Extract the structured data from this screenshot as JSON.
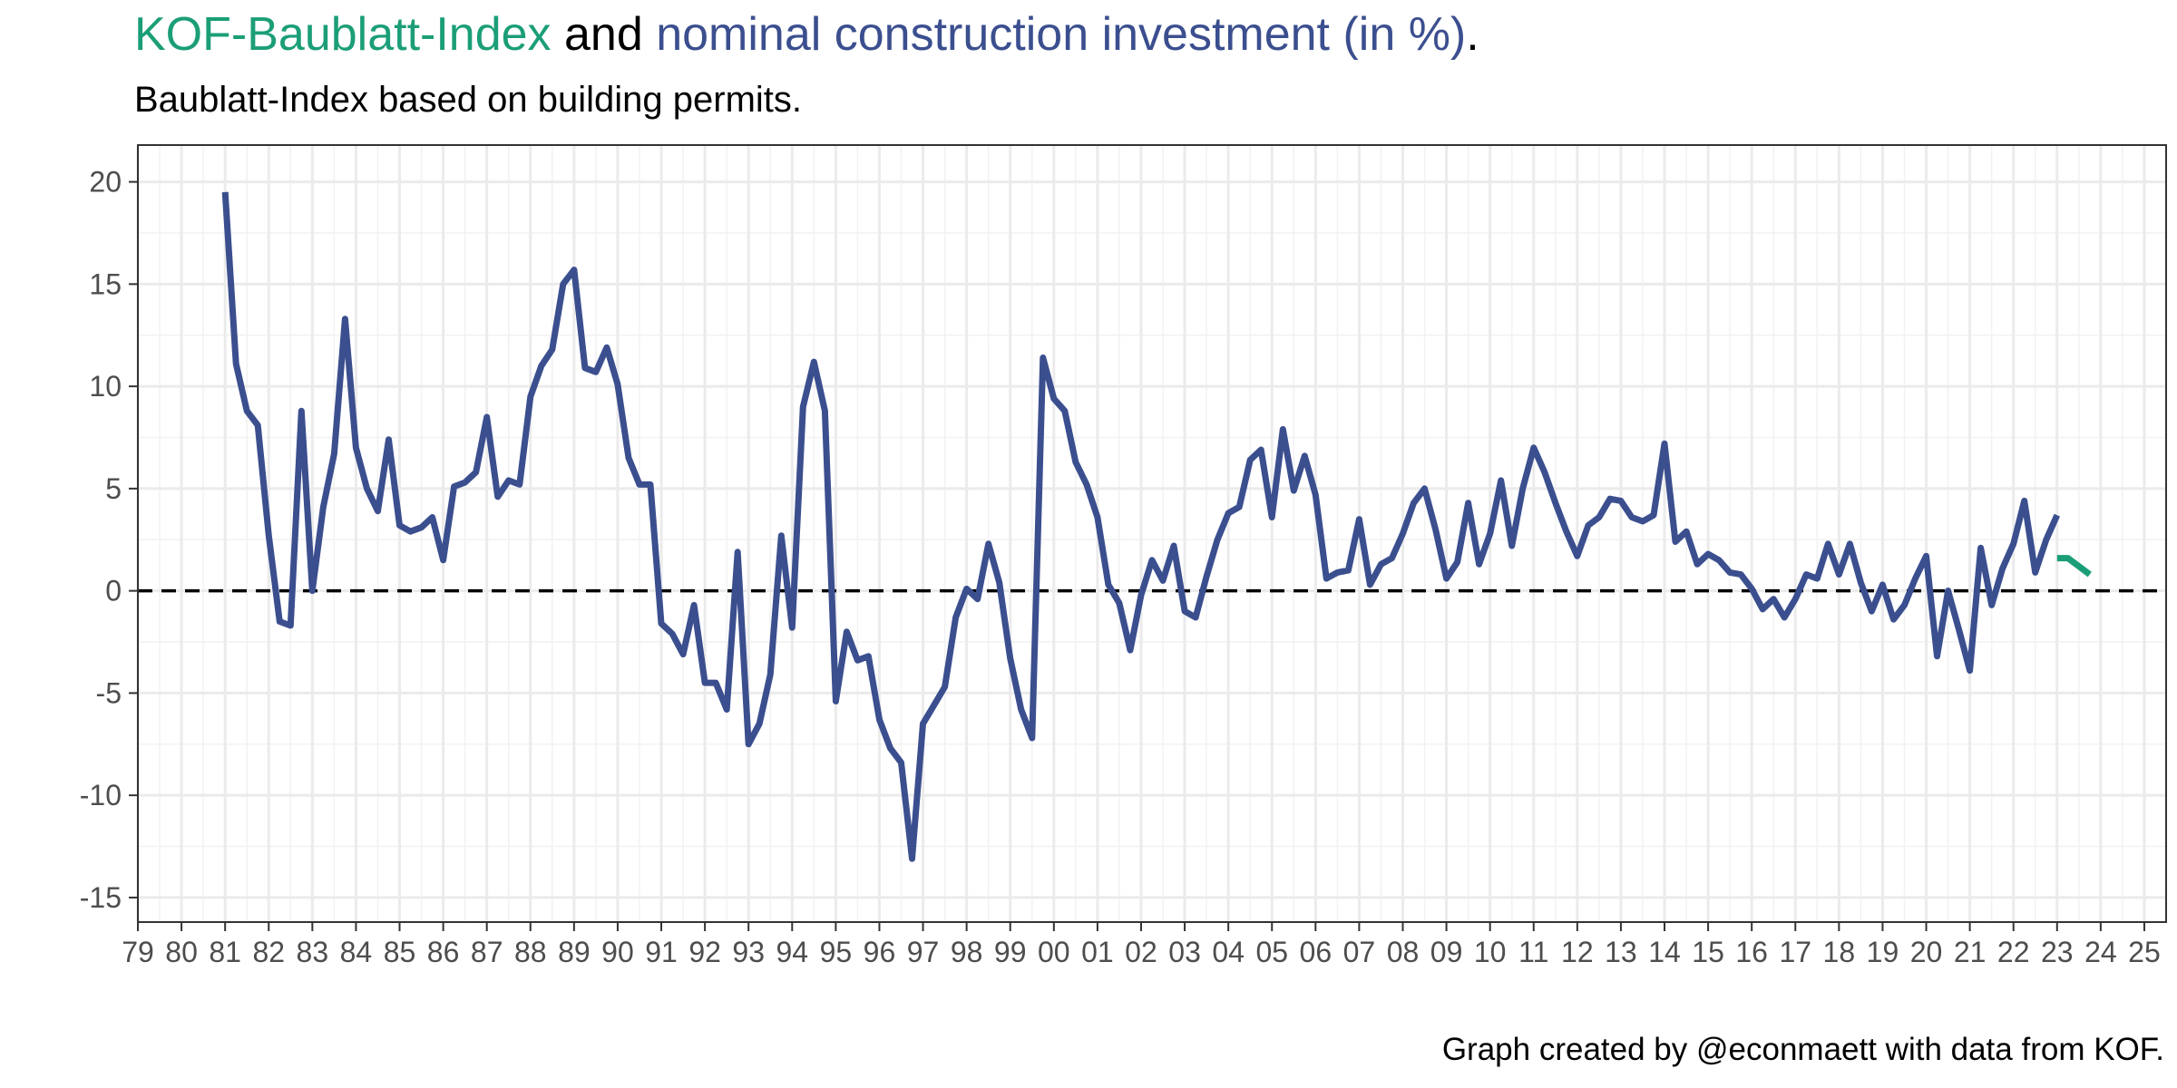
{
  "title": {
    "part1": "KOF-Baublatt-Index",
    "part2": " and ",
    "part3": "nominal construction investment (in %)",
    "part4": ".",
    "color_part1": "#1b9e77",
    "color_part3": "#3b4f8f"
  },
  "subtitle": "Baublatt-Index based on building permits.",
  "caption": "Graph created by @econmaett with data from KOF.",
  "chart_data": {
    "type": "line",
    "title": "KOF-Baublatt-Index and nominal construction investment (in %).",
    "subtitle": "Baublatt-Index based on building permits.",
    "xlabel": "",
    "ylabel": "",
    "xlim": [
      1979,
      2025.5
    ],
    "ylim": [
      -16.2,
      21.8
    ],
    "x_ticks": [
      1979,
      1980,
      1981,
      1982,
      1983,
      1984,
      1985,
      1986,
      1987,
      1988,
      1989,
      1990,
      1991,
      1992,
      1993,
      1994,
      1995,
      1996,
      1997,
      1998,
      1999,
      2000,
      2001,
      2002,
      2003,
      2004,
      2005,
      2006,
      2007,
      2008,
      2009,
      2010,
      2011,
      2012,
      2013,
      2014,
      2015,
      2016,
      2017,
      2018,
      2019,
      2020,
      2021,
      2022,
      2023,
      2024,
      2025
    ],
    "x_tick_labels": [
      "79",
      "80",
      "81",
      "82",
      "83",
      "84",
      "85",
      "86",
      "87",
      "88",
      "89",
      "90",
      "91",
      "92",
      "93",
      "94",
      "95",
      "96",
      "97",
      "98",
      "99",
      "00",
      "01",
      "02",
      "03",
      "04",
      "05",
      "06",
      "07",
      "08",
      "09",
      "10",
      "11",
      "12",
      "13",
      "14",
      "15",
      "16",
      "17",
      "18",
      "19",
      "20",
      "21",
      "22",
      "23",
      "24",
      "25"
    ],
    "y_ticks": [
      -15,
      -10,
      -5,
      0,
      5,
      10,
      15,
      20
    ],
    "y_tick_labels": [
      "-15",
      "-10",
      "-5",
      "0",
      "5",
      "10",
      "15",
      "20"
    ],
    "grid": true,
    "reference_line": {
      "y": 0,
      "style": "dashed",
      "color": "#000000"
    },
    "series": [
      {
        "name": "nominal construction investment (in %)",
        "color": "#3b4f8f",
        "x": [
          1981.0,
          1981.25,
          1981.5,
          1981.75,
          1982.0,
          1982.25,
          1982.5,
          1982.75,
          1983.0,
          1983.25,
          1983.5,
          1983.75,
          1984.0,
          1984.25,
          1984.5,
          1984.75,
          1985.0,
          1985.25,
          1985.5,
          1985.75,
          1986.0,
          1986.25,
          1986.5,
          1986.75,
          1987.0,
          1987.25,
          1987.5,
          1987.75,
          1988.0,
          1988.25,
          1988.5,
          1988.75,
          1989.0,
          1989.25,
          1989.5,
          1989.75,
          1990.0,
          1990.25,
          1990.5,
          1990.75,
          1991.0,
          1991.25,
          1991.5,
          1991.75,
          1992.0,
          1992.25,
          1992.5,
          1992.75,
          1993.0,
          1993.25,
          1993.5,
          1993.75,
          1994.0,
          1994.25,
          1994.5,
          1994.75,
          1995.0,
          1995.25,
          1995.5,
          1995.75,
          1996.0,
          1996.25,
          1996.5,
          1996.75,
          1997.0,
          1997.25,
          1997.5,
          1997.75,
          1998.0,
          1998.25,
          1998.5,
          1998.75,
          1999.0,
          1999.25,
          1999.5,
          1999.75,
          2000.0,
          2000.25,
          2000.5,
          2000.75,
          2001.0,
          2001.25,
          2001.5,
          2001.75,
          2002.0,
          2002.25,
          2002.5,
          2002.75,
          2003.0,
          2003.25,
          2003.5,
          2003.75,
          2004.0,
          2004.25,
          2004.5,
          2004.75,
          2005.0,
          2005.25,
          2005.5,
          2005.75,
          2006.0,
          2006.25,
          2006.5,
          2006.75,
          2007.0,
          2007.25,
          2007.5,
          2007.75,
          2008.0,
          2008.25,
          2008.5,
          2008.75,
          2009.0,
          2009.25,
          2009.5,
          2009.75,
          2010.0,
          2010.25,
          2010.5,
          2010.75,
          2011.0,
          2011.25,
          2011.5,
          2011.75,
          2012.0,
          2012.25,
          2012.5,
          2012.75,
          2013.0,
          2013.25,
          2013.5,
          2013.75,
          2014.0,
          2014.25,
          2014.5,
          2014.75,
          2015.0,
          2015.25,
          2015.5,
          2015.75,
          2016.0,
          2016.25,
          2016.5,
          2016.75,
          2017.0,
          2017.25,
          2017.5,
          2017.75,
          2018.0,
          2018.25,
          2018.5,
          2018.75,
          2019.0,
          2019.25,
          2019.5,
          2019.75,
          2020.0,
          2020.25,
          2020.5,
          2020.75,
          2021.0,
          2021.25,
          2021.5,
          2021.75,
          2022.0,
          2022.25,
          2022.5,
          2022.75,
          2023.0
        ],
        "values": [
          19.5,
          11.1,
          8.8,
          8.1,
          2.7,
          -1.5,
          -1.7,
          8.8,
          0.0,
          4.1,
          6.7,
          13.3,
          7.0,
          5.0,
          3.9,
          7.4,
          3.2,
          2.9,
          3.1,
          3.6,
          1.5,
          5.1,
          5.3,
          5.8,
          8.5,
          4.6,
          5.4,
          5.2,
          9.5,
          11.0,
          11.8,
          15.0,
          15.7,
          10.9,
          10.7,
          11.9,
          10.1,
          6.5,
          5.2,
          5.2,
          -1.6,
          -2.1,
          -3.1,
          -0.7,
          -4.5,
          -4.5,
          -5.8,
          1.9,
          -7.5,
          -6.5,
          -4.1,
          2.7,
          -1.8,
          9.0,
          11.2,
          8.8,
          -5.4,
          -2.0,
          -3.4,
          -3.2,
          -6.3,
          -7.7,
          -8.4,
          -13.1,
          -6.5,
          -5.6,
          -4.7,
          -1.3,
          0.1,
          -0.4,
          2.3,
          0.4,
          -3.3,
          -5.8,
          -7.2,
          11.4,
          9.4,
          8.8,
          6.3,
          5.2,
          3.6,
          0.3,
          -0.6,
          -2.9,
          -0.2,
          1.5,
          0.5,
          2.2,
          -1.0,
          -1.3,
          0.7,
          2.5,
          3.8,
          4.1,
          6.4,
          6.9,
          3.6,
          7.9,
          4.9,
          6.6,
          4.7,
          0.6,
          0.9,
          1.0,
          3.5,
          0.3,
          1.3,
          1.6,
          2.8,
          4.3,
          5.0,
          3.0,
          0.6,
          1.4,
          4.3,
          1.3,
          2.8,
          5.4,
          2.2,
          5.0,
          7.0,
          5.8,
          4.3,
          2.9,
          1.7,
          3.2,
          3.6,
          4.5,
          4.4,
          3.6,
          3.4,
          3.7,
          7.2,
          2.4,
          2.9,
          1.3,
          1.8,
          1.5,
          0.9,
          0.8,
          0.1,
          -0.9,
          -0.4,
          -1.3,
          -0.4,
          0.8,
          0.6,
          2.3,
          0.8,
          2.3,
          0.4,
          -1.0,
          0.3,
          -1.4,
          -0.7,
          0.6,
          1.7,
          -3.2,
          0.0,
          -1.9,
          -3.9,
          2.1,
          -0.7,
          1.1,
          2.3,
          4.4,
          0.9,
          2.5,
          3.7
        ]
      },
      {
        "name": "KOF-Baublatt-Index",
        "color": "#1b9e77",
        "x": [
          2023.0,
          2023.25,
          2023.5,
          2023.75
        ],
        "values": [
          1.6,
          1.6,
          1.2,
          0.8
        ]
      }
    ]
  }
}
